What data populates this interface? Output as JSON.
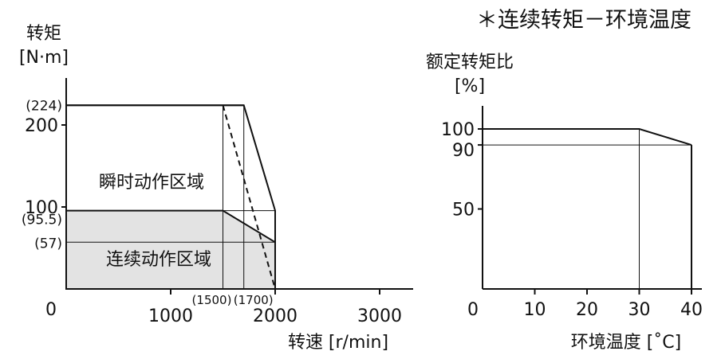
{
  "header": "＊连续转矩－环境温度",
  "chart_data": [
    {
      "type": "area",
      "ylabel_line1": "转矩",
      "ylabel_line2": "[N·m]",
      "xlabel": "转速 [r/min]",
      "xlim": [
        0,
        3250
      ],
      "ylim": [
        0,
        250
      ],
      "x_ticks": [
        {
          "value": 0,
          "label": "0"
        },
        {
          "value": 1000,
          "label": "1000"
        },
        {
          "value": 2000,
          "label": "2000"
        },
        {
          "value": 3000,
          "label": "3000"
        }
      ],
      "x_annotations": [
        {
          "value": 1500,
          "label": "(1500)"
        },
        {
          "value": 1700,
          "label": "(1700)"
        }
      ],
      "y_ticks": [
        {
          "value": 100,
          "label": "100"
        },
        {
          "value": 200,
          "label": "200"
        }
      ],
      "y_annotations": [
        {
          "value": 224,
          "label": "(224)"
        },
        {
          "value": 95.5,
          "label": "(95.5)"
        },
        {
          "value": 57,
          "label": "(57)"
        }
      ],
      "regions": [
        {
          "name": "瞬时动作区域",
          "fill": "#ffffff",
          "points": [
            [
              0,
              224
            ],
            [
              1700,
              224
            ],
            [
              2000,
              95.5
            ],
            [
              2000,
              0
            ],
            [
              0,
              0
            ]
          ]
        },
        {
          "name": "连续动作区域",
          "fill": "#e3e3e3",
          "points": [
            [
              0,
              95.5
            ],
            [
              1500,
              95.5
            ],
            [
              2000,
              57
            ],
            [
              2000,
              0
            ],
            [
              0,
              0
            ]
          ]
        }
      ],
      "dashed_line": [
        [
          1500,
          224
        ],
        [
          2000,
          0
        ]
      ],
      "guide_lines": [
        [
          [
            1700,
            224
          ],
          [
            1700,
            0
          ]
        ],
        [
          [
            1500,
            224
          ],
          [
            1500,
            0
          ]
        ],
        [
          [
            1500,
            95.5
          ],
          [
            2000,
            95.5
          ]
        ],
        [
          [
            0,
            57
          ],
          [
            2000,
            57
          ]
        ]
      ]
    },
    {
      "type": "line",
      "ylabel_line1": "额定转矩比",
      "ylabel_line2": "[%]",
      "xlabel": "环境温度 [˚C]",
      "xlim": [
        0,
        44
      ],
      "ylim": [
        0,
        120
      ],
      "x_ticks": [
        {
          "value": 0,
          "label": "0"
        },
        {
          "value": 10,
          "label": "10"
        },
        {
          "value": 20,
          "label": "20"
        },
        {
          "value": 30,
          "label": "30"
        },
        {
          "value": 40,
          "label": "40"
        }
      ],
      "y_ticks": [
        {
          "value": 50,
          "label": "50"
        },
        {
          "value": 90,
          "label": "90"
        },
        {
          "value": 100,
          "label": "100"
        }
      ],
      "series": [
        {
          "values": [
            [
              0,
              100
            ],
            [
              30,
              100
            ],
            [
              40,
              90
            ]
          ]
        }
      ],
      "guide_lines": [
        [
          [
            30,
            100
          ],
          [
            30,
            0
          ]
        ],
        [
          [
            40,
            90
          ],
          [
            40,
            0
          ]
        ],
        [
          [
            0,
            90
          ],
          [
            40,
            90
          ]
        ]
      ]
    }
  ]
}
